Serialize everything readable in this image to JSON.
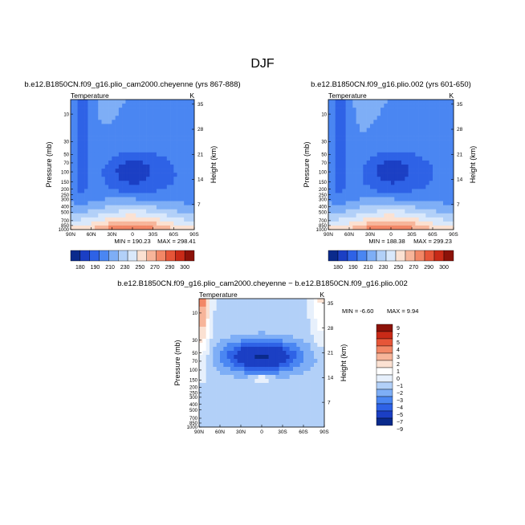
{
  "page_title": "DJF",
  "colors": {
    "abs_scale": [
      "#0a2a8c",
      "#1b3fc4",
      "#2e62e6",
      "#4a86f2",
      "#7eaef6",
      "#b2d0f8",
      "#d9e8fb",
      "#fbe1d2",
      "#f7b59a",
      "#f28766",
      "#e65538",
      "#c92a17",
      "#8c1209"
    ],
    "diff_scale": [
      "#0a2a8c",
      "#1b3fc4",
      "#2e62e6",
      "#4a86f2",
      "#7eaef6",
      "#b2d0f8",
      "#e7f0fc",
      "#ffffff",
      "#fbe1d2",
      "#f7b59a",
      "#f28766",
      "#e65538",
      "#c92a17",
      "#8c1209"
    ]
  },
  "chart_data": [
    {
      "type": "heatmap",
      "title": "b.e12.B1850CN.f09_g16.plio_cam2000.cheyenne (yrs 867-888)",
      "subtitle_left": "Temperature",
      "subtitle_right": "K",
      "ylabel": "Pressure (mb)",
      "ylabel_right": "Height (km)",
      "x_ticks": [
        "90N",
        "60N",
        "30N",
        "0",
        "30S",
        "60S",
        "90S"
      ],
      "y_ticks": [
        "10",
        "30",
        "50",
        "70",
        "100",
        "150",
        "200",
        "250",
        "300",
        "400",
        "500",
        "700",
        "850",
        "1000"
      ],
      "y_right_ticks": [
        "35",
        "28",
        "21",
        "14",
        "7"
      ],
      "min_label": "MIN = 190.23",
      "max_label": "MAX = 298.41",
      "min": 190.23,
      "max": 298.41,
      "legend_labels": [
        "180",
        "190",
        "210",
        "230",
        "250",
        "270",
        "290",
        "300"
      ]
    },
    {
      "type": "heatmap",
      "title": "b.e12.B1850CN.f09_g16.plio.002 (yrs 601-650)",
      "subtitle_left": "Temperature",
      "subtitle_right": "K",
      "ylabel": "Pressure (mb)",
      "ylabel_right": "Height (km)",
      "x_ticks": [
        "90N",
        "60N",
        "30N",
        "0",
        "30S",
        "60S",
        "90S"
      ],
      "y_ticks": [
        "10",
        "30",
        "50",
        "70",
        "100",
        "150",
        "200",
        "250",
        "300",
        "400",
        "500",
        "700",
        "850",
        "1000"
      ],
      "y_right_ticks": [
        "35",
        "28",
        "21",
        "14",
        "7"
      ],
      "min_label": "MIN = 188.38",
      "max_label": "MAX = 299.23",
      "min": 188.38,
      "max": 299.23,
      "legend_labels": [
        "180",
        "190",
        "210",
        "230",
        "250",
        "270",
        "290",
        "300"
      ]
    },
    {
      "type": "heatmap",
      "title": "b.e12.B1850CN.f09_g16.plio_cam2000.cheyenne − b.e12.B1850CN.f09_g16.plio.002",
      "subtitle_left": "Temperature",
      "subtitle_right": "K",
      "ylabel": "Pressure (mb)",
      "ylabel_right": "Height (km)",
      "x_ticks": [
        "90N",
        "60N",
        "30N",
        "0",
        "30S",
        "60S",
        "90S"
      ],
      "y_ticks": [
        "10",
        "30",
        "50",
        "70",
        "100",
        "150",
        "200",
        "250",
        "300",
        "400",
        "500",
        "700",
        "850",
        "1000"
      ],
      "y_right_ticks": [
        "35",
        "28",
        "21",
        "14",
        "7"
      ],
      "min_label": "MIN =   -6.60",
      "max_label": "MAX =    9.94",
      "min": -6.6,
      "max": 9.94,
      "legend_labels": [
        "9",
        "7",
        "5",
        "4",
        "3",
        "2",
        "1",
        "0",
        "−1",
        "−2",
        "−3",
        "−4",
        "−5",
        "−7",
        "−9"
      ]
    }
  ]
}
